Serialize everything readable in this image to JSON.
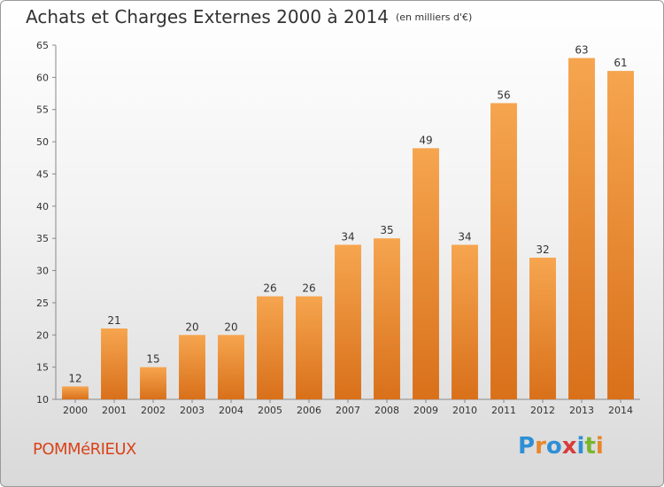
{
  "header": {
    "title": "Achats et Charges Externes 2000 à 2014",
    "subtitle": "(en milliers d'€)"
  },
  "footer": {
    "town": "POMMéRIEUX",
    "logo": "Proxiti"
  },
  "colors": {
    "bar_top": "#f6a54f",
    "bar_bottom": "#d9701a",
    "town": "#d9441b"
  },
  "chart_data": {
    "type": "bar",
    "title": "Achats et Charges Externes 2000 à 2014",
    "subtitle": "(en milliers d'€)",
    "categories": [
      "2000",
      "2001",
      "2002",
      "2003",
      "2004",
      "2005",
      "2006",
      "2007",
      "2008",
      "2009",
      "2010",
      "2011",
      "2012",
      "2013",
      "2014"
    ],
    "values": [
      12,
      21,
      15,
      20,
      20,
      26,
      26,
      34,
      35,
      49,
      34,
      56,
      32,
      63,
      61
    ],
    "ylim": [
      10,
      65
    ],
    "yticks": [
      10,
      15,
      20,
      25,
      30,
      35,
      40,
      45,
      50,
      55,
      60,
      65
    ],
    "grid": false,
    "data_labels": true
  }
}
